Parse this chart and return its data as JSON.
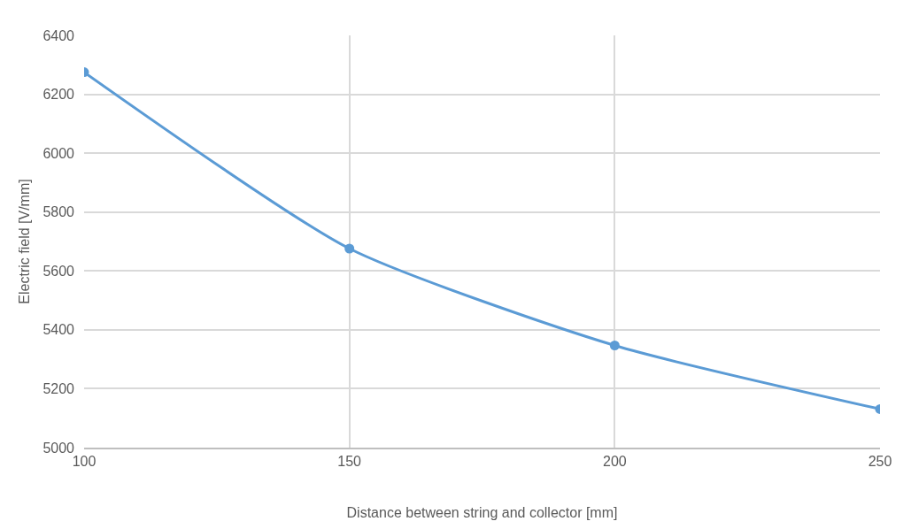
{
  "chart_data": {
    "type": "line",
    "xlabel": "Distance between string and collector [mm]",
    "ylabel": "Electric field [V/mm]",
    "x": [
      100,
      150,
      200,
      250
    ],
    "series": [
      {
        "color": "#5b9bd5",
        "values": [
          6275,
          5676,
          5347,
          5131
        ]
      }
    ],
    "xlim": [
      100,
      250
    ],
    "xticks": [
      100,
      150,
      200,
      250
    ],
    "ylim": [
      5000,
      6400
    ],
    "yticks": [
      5000,
      5200,
      5400,
      5600,
      5800,
      6000,
      6200,
      6400
    ],
    "grid": true,
    "legend": false,
    "marker": "circle",
    "line_style": "solid"
  }
}
